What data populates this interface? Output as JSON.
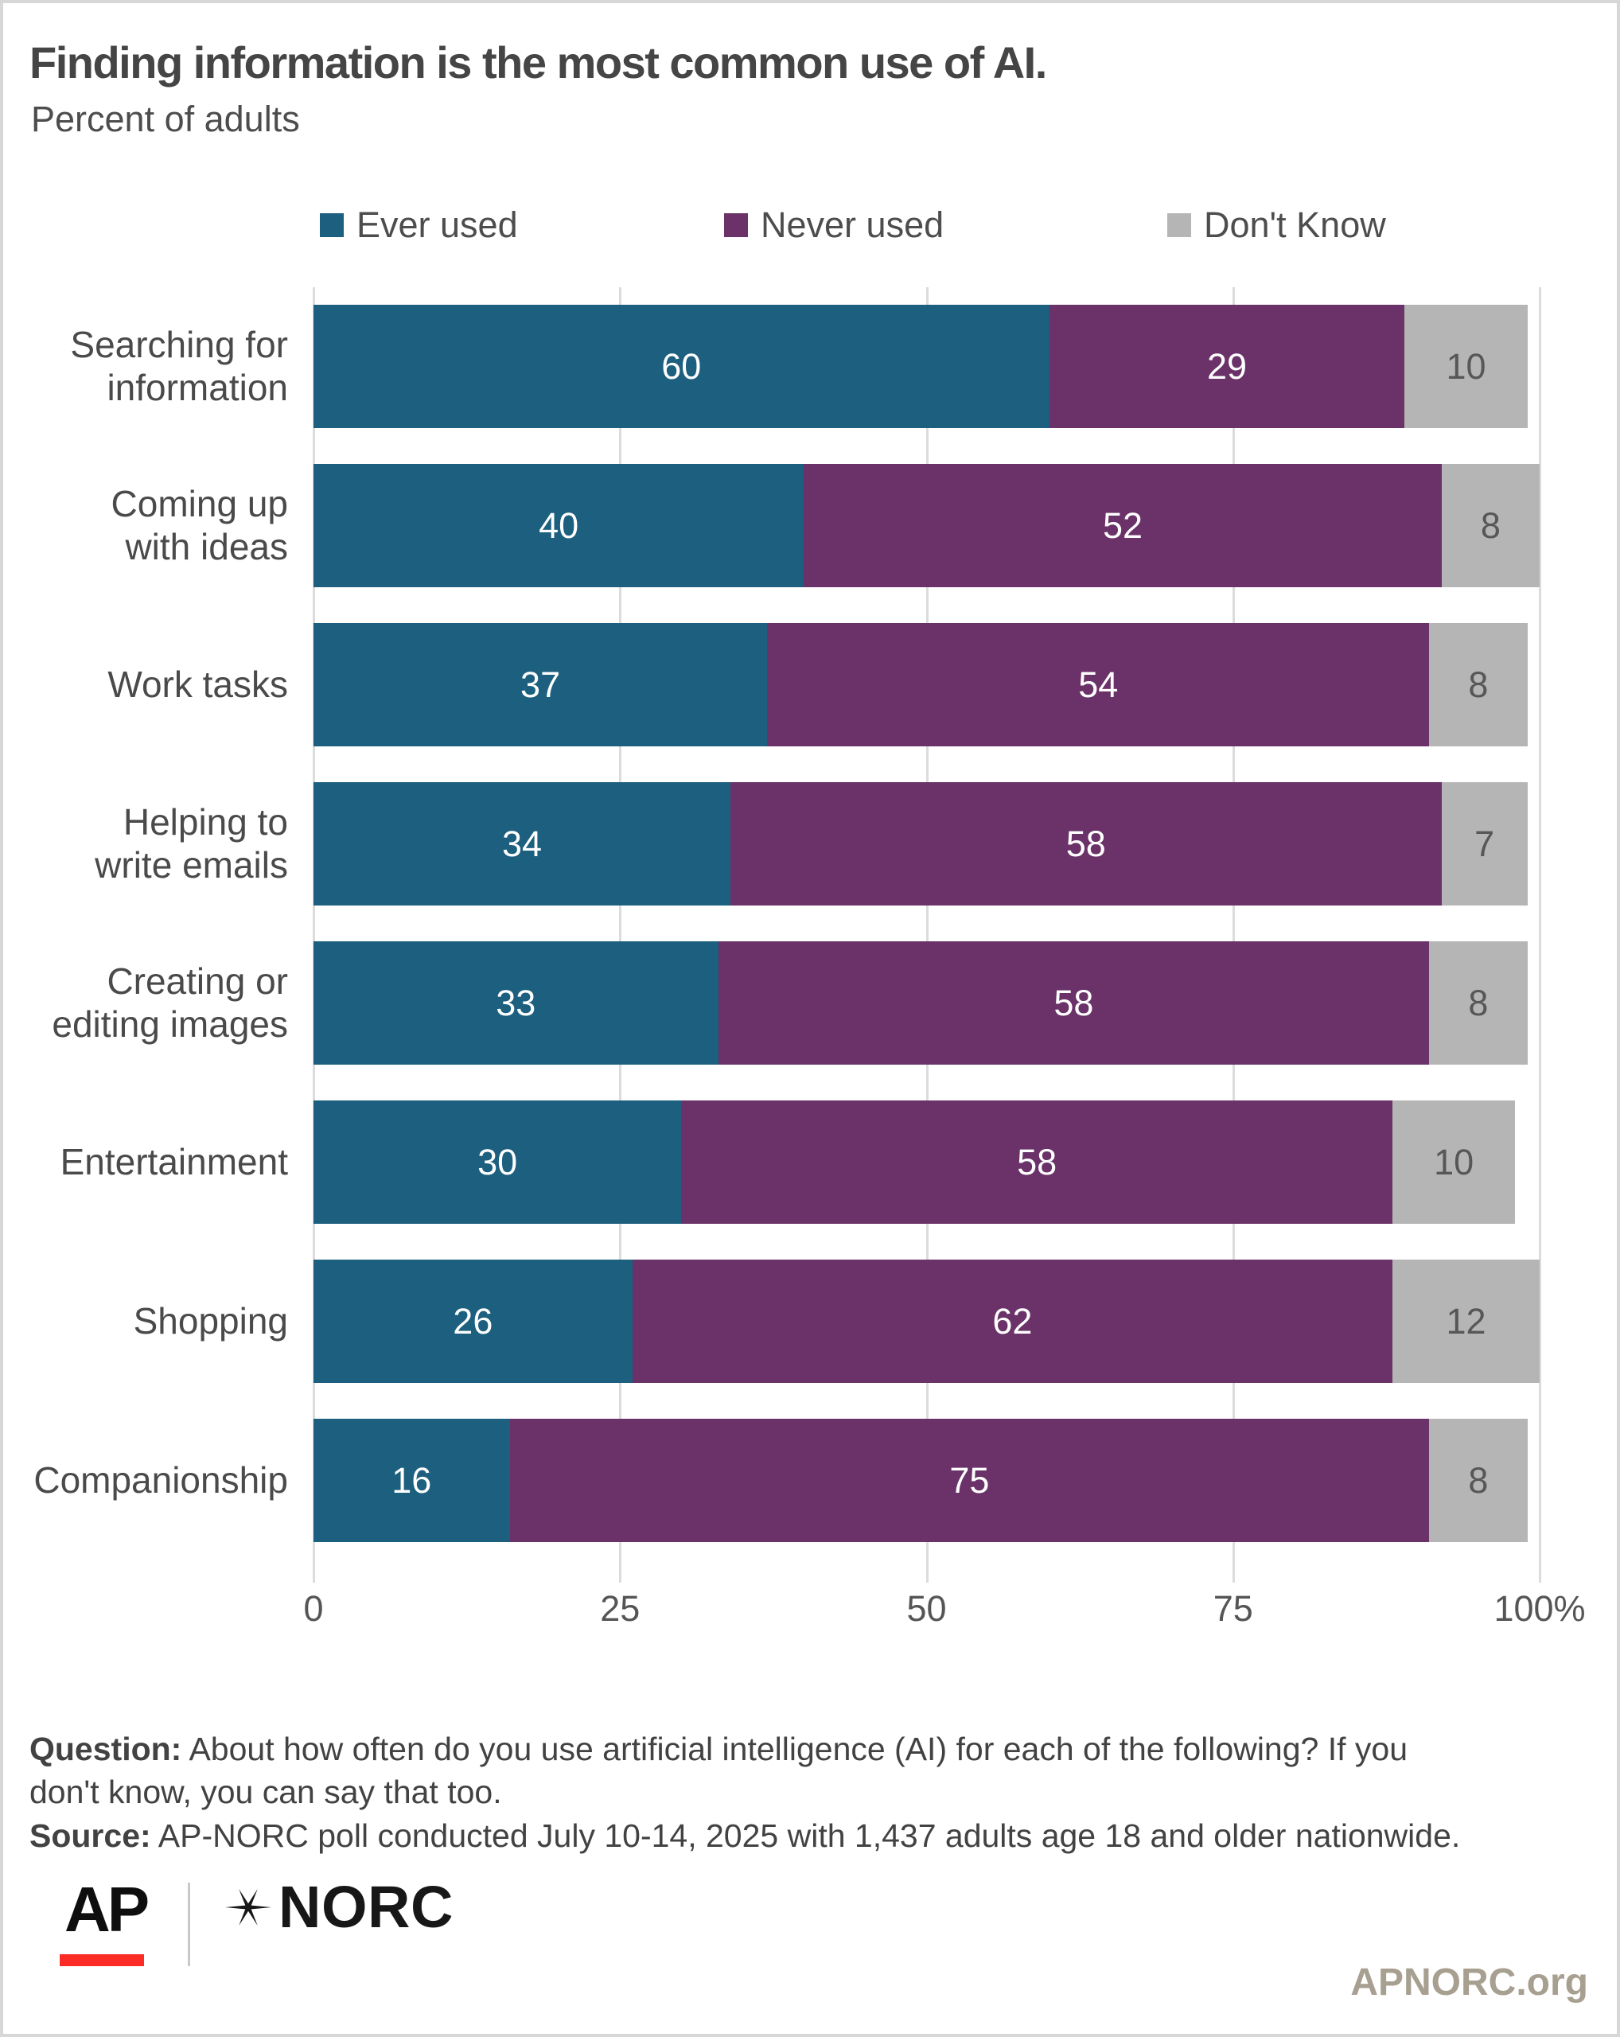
{
  "page": {
    "title": "Finding information is the most common use of AI.",
    "subtitle": "Percent of adults"
  },
  "legend": [
    {
      "label": "Ever used",
      "color": "#1c5f7f"
    },
    {
      "label": "Never used",
      "color": "#6a3268"
    },
    {
      "label": "Don't Know",
      "color": "#b5b5b5"
    }
  ],
  "chart_data": {
    "type": "bar",
    "orientation": "horizontal",
    "stacked": true,
    "title": "Finding information is the most common use of AI.",
    "subtitle": "Percent of adults",
    "categories": [
      "Searching for information",
      "Coming up with ideas",
      "Work tasks",
      "Helping to write emails",
      "Creating or editing images",
      "Entertainment",
      "Shopping",
      "Companionship"
    ],
    "category_labels": [
      "Searching for\ninformation",
      "Coming up\nwith ideas",
      "Work tasks",
      "Helping to\nwrite emails",
      "Creating or\nediting images",
      "Entertainment",
      "Shopping",
      "Companionship"
    ],
    "series": [
      {
        "name": "Ever used",
        "color": "#1c5f7f",
        "label_color": "#ffffff",
        "values": [
          60,
          40,
          37,
          34,
          33,
          30,
          26,
          16
        ]
      },
      {
        "name": "Never used",
        "color": "#6a3268",
        "label_color": "#ffffff",
        "values": [
          29,
          52,
          54,
          58,
          58,
          58,
          62,
          75
        ]
      },
      {
        "name": "Don't Know",
        "color": "#b5b5b5",
        "label_color": "#575757",
        "values": [
          10,
          8,
          8,
          7,
          8,
          10,
          12,
          8
        ]
      }
    ],
    "x_ticks": [
      "0",
      "25",
      "50",
      "75",
      "100%"
    ],
    "x_tick_positions": [
      0,
      25,
      50,
      75,
      100
    ],
    "xlim": [
      0,
      100
    ],
    "grid": true,
    "gridline_color": "#dcdcdc",
    "legend_position": "top"
  },
  "footer": {
    "question_label": "Question:",
    "question_text": " About how often do you use artificial intelligence (AI) for each of the following? If you\ndon't know, you can say that too.\n",
    "source_label": "Source:",
    "source_text": " AP-NORC poll conducted July 10-14, 2025 with 1,437 adults age 18 and older nationwide.",
    "website": "APNORC.org"
  },
  "logos": {
    "ap_text": "AP",
    "norc_text": "NORC",
    "star_icon": "six-point-star",
    "ap_red": "#fb2b25"
  }
}
